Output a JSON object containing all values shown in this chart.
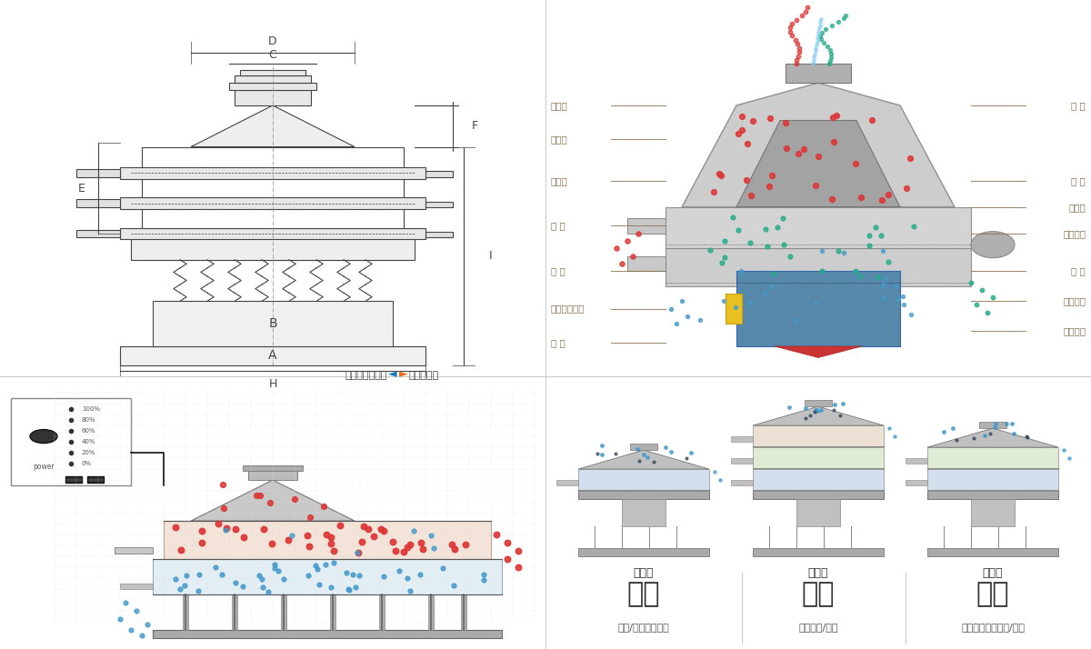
{
  "bg_color": "#ffffff",
  "top_left_label": "外形尺寸示意图",
  "top_right_label": "结构示意图",
  "dim_labels": [
    "A",
    "B",
    "C",
    "D",
    "E",
    "F",
    "H",
    "I"
  ],
  "structure_labels_left": [
    "进料口",
    "防尘盖",
    "出料口",
    "束 环",
    "弹 簧",
    "运输固定螺栓",
    "机 座"
  ],
  "structure_labels_right": [
    "筛 网",
    "网 架",
    "加重块",
    "上部重锤",
    "筛 盘",
    "振动电机",
    "下部重锤"
  ],
  "bottom_labels_single": "单层式",
  "bottom_labels_three": "三层式",
  "bottom_labels_double": "双层式",
  "func_labels": [
    "分级",
    "过滤",
    "除杂"
  ],
  "func_sub": [
    "颗粒/粉末准确分级",
    "去除异物/结块",
    "去除液体中的颗粒/异物"
  ],
  "arrow_color": "#1a7abf",
  "line_color": "#b8a070",
  "title_color": "#333333",
  "text_color": "#555555"
}
